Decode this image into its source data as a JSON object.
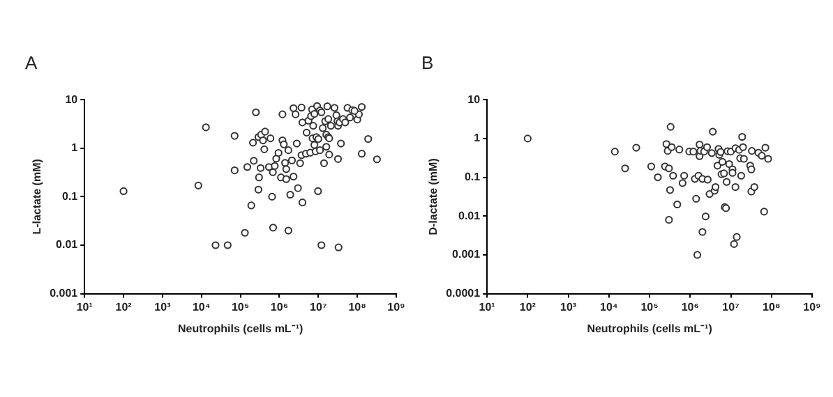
{
  "chart_data": [
    {
      "type": "scatter",
      "title": "A",
      "xlabel": "Neutrophils (cells mL⁻¹)",
      "ylabel": "L-lactate (mM)",
      "log": "xy",
      "marker": "circle",
      "legend": false,
      "xlim": [
        10,
        1000000000.0
      ],
      "xticks": [
        {
          "value": 10,
          "label": "10¹"
        },
        {
          "value": 100,
          "label": "10²"
        },
        {
          "value": 1000,
          "label": "10³"
        },
        {
          "value": 10000,
          "label": "10⁴"
        },
        {
          "value": 100000,
          "label": "10⁵"
        },
        {
          "value": 1000000,
          "label": "10⁶"
        },
        {
          "value": 10000000,
          "label": "10⁷"
        },
        {
          "value": 100000000,
          "label": "10⁸"
        },
        {
          "value": 1000000000,
          "label": "10⁹"
        }
      ],
      "ylim": [
        0.001,
        10
      ],
      "yticks": [
        0.001,
        0.01,
        0.1,
        1,
        10
      ],
      "series": [
        {
          "color": "#333333",
          "x": [
            100.0,
            8300.0,
            13000.0,
            71000.0,
            71000.0,
            23000.0,
            47000.0,
            130000.0,
            190000.0,
            250000.0,
            210000.0,
            150000.0,
            220000.0,
            290000.0,
            340000.0,
            430000.0,
            290000.0,
            300000.0,
            330000.0,
            380000.0,
            410000.0,
            540000.0,
            590000.0,
            680000.0,
            690000.0,
            650000.0,
            760000.0,
            830000.0,
            950000.0,
            1100000.0,
            1200000.0,
            1200000.0,
            1300000.0,
            1400000.0,
            1500000.0,
            1500000.0,
            1700000.0,
            1700000.0,
            1900000.0,
            2100000.0,
            2300000.0,
            2300000.0,
            2600000.0,
            2800000.0,
            3000000.0,
            3400000.0,
            3700000.0,
            3700000.0,
            3900000.0,
            3900000.0,
            4800000.0,
            5000000.0,
            5600000.0,
            6200000.0,
            6500000.0,
            6900000.0,
            7100000.0,
            7400000.0,
            7900000.0,
            8500000.0,
            8900000.0,
            9300000.0,
            9800000.0,
            11000000.0,
            11000000.0,
            12000000.0,
            13000000.0,
            14000000.0,
            16000000.0,
            16000000.0,
            15000000.0,
            17000000.0,
            18000000.0,
            19000000.0,
            18000000.0,
            19000000.0,
            21000000.0,
            26000000.0,
            29000000.0,
            31000000.0,
            32000000.0,
            32000000.0,
            33000000.0,
            35000000.0,
            38000000.0,
            43000000.0,
            49000000.0,
            56000000.0,
            65000000.0,
            74000000.0,
            100000000.0,
            110000000.0,
            130000000.0,
            130000000.0,
            190000000.0,
            320000000.0,
            85000000.0,
            12000000.0,
            7900000.0,
            10000000.0
          ],
          "values": [
            0.13,
            0.17,
            2.7,
            1.8,
            0.35,
            0.01,
            0.01,
            0.018,
            0.066,
            5.5,
            1.3,
            0.41,
            0.55,
            1.7,
            1.9,
            2.2,
            0.14,
            0.25,
            0.39,
            1.45,
            0.95,
            0.41,
            1.6,
            0.32,
            0.023,
            0.1,
            0.43,
            0.61,
            0.8,
            0.25,
            5.0,
            1.45,
            1.2,
            0.5,
            0.23,
            0.37,
            0.91,
            0.02,
            0.11,
            0.56,
            0.26,
            6.7,
            5.0,
            1.25,
            0.15,
            0.49,
            0.72,
            6.9,
            3.4,
            0.076,
            0.77,
            2.1,
            3.7,
            0.81,
            4.6,
            6.3,
            1.6,
            2.9,
            5.1,
            0.86,
            1.7,
            7.4,
            0.13,
            0.91,
            6.0,
            0.01,
            2.6,
            0.49,
            1.07,
            1.9,
            3.6,
            7.3,
            1.7,
            0.74,
            4.0,
            1.6,
            2.9,
            6.8,
            4.8,
            3.6,
            2.9,
            0.6,
            0.009,
            3.4,
            1.25,
            4.0,
            3.4,
            6.8,
            4.3,
            6.1,
            3.9,
            5.0,
            7.1,
            0.77,
            1.55,
            0.59,
            5.9,
            5.5,
            1.17,
            1.55
          ]
        }
      ]
    },
    {
      "type": "scatter",
      "title": "B",
      "xlabel": "Neutrophils (cells mL⁻¹)",
      "ylabel": "D-lactate (mM)",
      "log": "xy",
      "marker": "circle",
      "legend": false,
      "xlim": [
        10,
        1000000000.0
      ],
      "xticks": [
        {
          "value": 10,
          "label": "10¹"
        },
        {
          "value": 100,
          "label": "10²"
        },
        {
          "value": 1000,
          "label": "10³"
        },
        {
          "value": 10000,
          "label": "10⁴"
        },
        {
          "value": 100000,
          "label": "10⁵"
        },
        {
          "value": 1000000,
          "label": "10⁶"
        },
        {
          "value": 10000000,
          "label": "10⁷"
        },
        {
          "value": 100000000,
          "label": "10⁸"
        },
        {
          "value": 1000000000,
          "label": "10⁹"
        }
      ],
      "ylim": [
        0.0001,
        10
      ],
      "yticks": [
        0.0001,
        0.001,
        0.01,
        0.1,
        1,
        10
      ],
      "series": [
        {
          "color": "#333333",
          "x": [
            100.0,
            14000.0,
            25000.0,
            47000.0,
            110000.0,
            160000.0,
            240000.0,
            260000.0,
            280000.0,
            300000.0,
            320000.0,
            300000.0,
            330000.0,
            350000.0,
            380000.0,
            480000.0,
            540000.0,
            650000.0,
            710000.0,
            950000.0,
            1200000.0,
            1300000.0,
            1400000.0,
            1500000.0,
            1600000.0,
            1700000.0,
            1700000.0,
            1800000.0,
            2000000.0,
            2000000.0,
            2200000.0,
            2400000.0,
            2600000.0,
            2700000.0,
            3000000.0,
            3400000.0,
            3600000.0,
            4000000.0,
            4200000.0,
            4700000.0,
            5000000.0,
            5200000.0,
            5600000.0,
            5900000.0,
            6200000.0,
            6800000.0,
            7100000.0,
            7600000.0,
            7900000.0,
            8300000.0,
            9100000.0,
            10000000.0,
            11000000.0,
            11000000.0,
            12000000.0,
            13000000.0,
            13000000.0,
            14000000.0,
            16000000.0,
            17000000.0,
            18000000.0,
            19000000.0,
            20000000.0,
            21000000.0,
            30000000.0,
            32000000.0,
            32000000.0,
            33000000.0,
            38000000.0,
            48000000.0,
            58000000.0,
            66000000.0,
            71000000.0,
            83000000.0
          ],
          "values": [
            1.0,
            0.46,
            0.17,
            0.58,
            0.19,
            0.1,
            0.19,
            0.72,
            0.48,
            0.17,
            0.047,
            0.008,
            2.0,
            0.6,
            0.11,
            0.02,
            0.52,
            0.071,
            0.11,
            0.46,
            0.46,
            0.091,
            0.028,
            0.001,
            0.11,
            0.7,
            0.35,
            0.48,
            0.091,
            0.0039,
            0.46,
            0.0098,
            0.6,
            0.087,
            0.037,
            0.42,
            1.5,
            0.045,
            0.056,
            0.2,
            0.54,
            0.38,
            0.45,
            0.12,
            0.25,
            0.126,
            0.017,
            0.016,
            0.076,
            0.47,
            0.22,
            0.46,
            0.16,
            0.13,
            0.0019,
            0.056,
            0.56,
            0.0029,
            0.51,
            0.31,
            0.11,
            1.1,
            0.6,
            0.3,
            0.2,
            0.043,
            0.16,
            0.48,
            0.056,
            0.43,
            0.36,
            0.013,
            0.58,
            0.3
          ]
        }
      ]
    }
  ]
}
